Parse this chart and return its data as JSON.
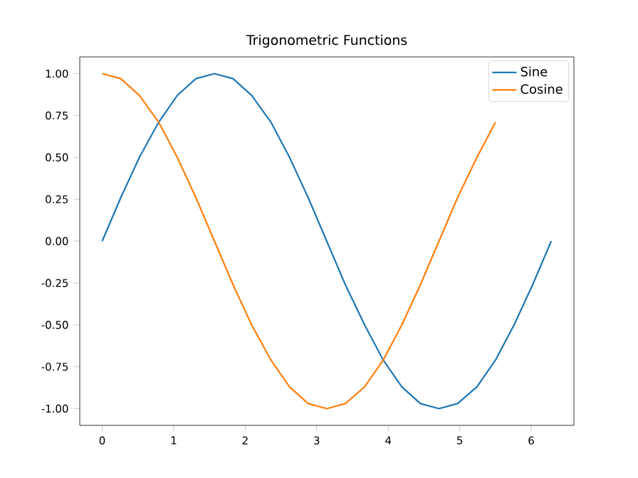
{
  "chart_data": {
    "type": "line",
    "title": "Trigonometric Functions",
    "x": [
      0,
      0.26,
      0.52,
      0.79,
      1.05,
      1.31,
      1.57,
      1.83,
      2.09,
      2.36,
      2.62,
      2.88,
      3.14,
      3.4,
      3.67,
      3.93,
      4.19,
      4.45,
      4.71,
      4.97,
      5.24,
      5.5,
      5.76,
      6.02,
      6.28
    ],
    "series": [
      {
        "name": "Sine",
        "color": "#1f77b4",
        "values": [
          0,
          0.26,
          0.5,
          0.71,
          0.87,
          0.97,
          1,
          0.97,
          0.87,
          0.71,
          0.5,
          0.26,
          0,
          -0.26,
          -0.5,
          -0.71,
          -0.87,
          -0.97,
          -1,
          -0.97,
          -0.87,
          -0.71,
          -0.5,
          -0.26,
          0
        ]
      },
      {
        "name": "Cosine",
        "color": "#ff7f0e",
        "values": [
          1,
          0.97,
          0.87,
          0.71,
          0.5,
          0.26,
          0,
          -0.26,
          -0.5,
          -0.71,
          -0.87,
          -0.97,
          -1,
          -0.97,
          -0.87,
          -0.71,
          -0.5,
          -0.26,
          0,
          0.26,
          0.5,
          0.71,
          null,
          null,
          null
        ]
      }
    ],
    "xlim": [
      -0.314,
      6.597
    ],
    "ylim": [
      -1.1,
      1.1
    ],
    "xticks": [
      0,
      1,
      2,
      3,
      4,
      5,
      6
    ],
    "yticks": [
      {
        "value": -1,
        "label": "-1.00"
      },
      {
        "value": -0.75,
        "label": "-0.75"
      },
      {
        "value": -0.5,
        "label": "-0.50"
      },
      {
        "value": -0.25,
        "label": "-0.25"
      },
      {
        "value": 0,
        "label": "0.00"
      },
      {
        "value": 0.25,
        "label": "0.25"
      },
      {
        "value": 0.5,
        "label": "0.50"
      },
      {
        "value": 0.75,
        "label": "0.75"
      },
      {
        "value": 1,
        "label": "1.00"
      }
    ],
    "grid": false,
    "legend": "top right",
    "marker": "none",
    "line_style": "solid"
  }
}
